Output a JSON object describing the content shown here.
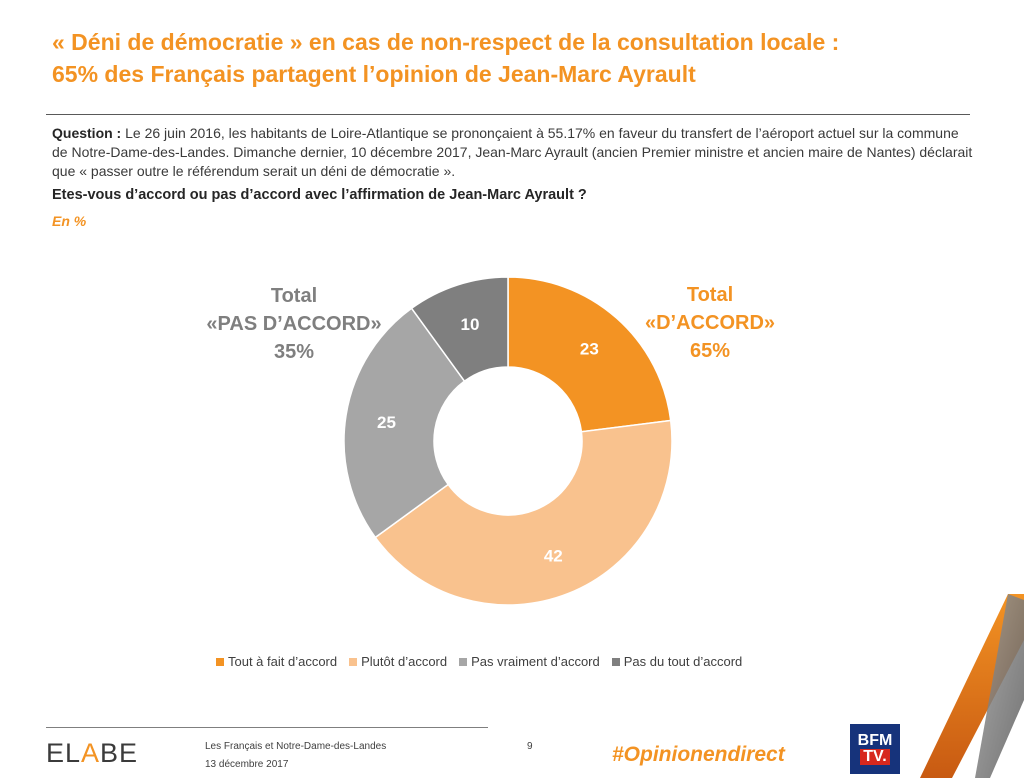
{
  "header": {
    "title_line1": "« Déni de démocratie » en cas de non-respect de la consultation locale :",
    "title_line2": "65% des Français partagent l’opinion de Jean-Marc Ayrault"
  },
  "question": {
    "label": "Question :",
    "text": "Le 26 juin 2016, les habitants de Loire-Atlantique se prononçaient à 55.17% en faveur du transfert de l’aéroport actuel sur la commune de Notre-Dame-des-Landes. Dimanche dernier, 10 décembre 2017, Jean-Marc Ayrault (ancien Premier ministre et ancien maire de Nantes) déclarait que « passer outre le référendum serait un déni de démocratie ».",
    "prompt": "Etes-vous d’accord ou pas d’accord avec l’affirmation de Jean-Marc Ayrault ?",
    "unit": "En %"
  },
  "totals": {
    "disagree": {
      "line1": "Total",
      "line2": "«PAS D’ACCORD»",
      "line3": "35%"
    },
    "agree": {
      "line1": "Total",
      "line2": "«D’ACCORD»",
      "line3": "65%"
    }
  },
  "chart_data": {
    "type": "pie",
    "variant": "donut",
    "title": "Etes-vous d’accord ou pas d’accord avec l’affirmation de Jean-Marc Ayrault ?",
    "unit": "%",
    "categories": [
      "Tout à fait d’accord",
      "Plutôt d’accord",
      "Pas vraiment d’accord",
      "Pas du tout d’accord"
    ],
    "values": [
      23,
      42,
      25,
      10
    ],
    "colors": [
      "#f39323",
      "#f9c28e",
      "#a6a6a6",
      "#7f7f7f"
    ],
    "legend_position": "bottom"
  },
  "footer": {
    "logo_text_1": "EL",
    "logo_text_a": "A",
    "logo_text_2": "BE",
    "study": "Les Français et Notre-Dame-des-Landes",
    "date": "13 décembre 2017",
    "page": "9",
    "hashtag": "#Opinionendirect",
    "partner_top": "BFM",
    "partner_bottom": "TV."
  }
}
